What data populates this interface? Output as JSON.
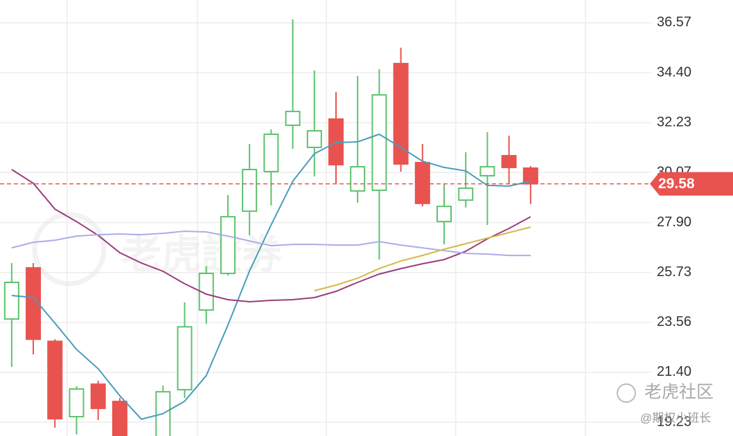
{
  "chart_data": {
    "type": "candlestick",
    "x": [
      0,
      1,
      2,
      3,
      4,
      5,
      6,
      7,
      8,
      9,
      10,
      11,
      12,
      13,
      14,
      15,
      16,
      17,
      18,
      19,
      20,
      21,
      22,
      23,
      24
    ],
    "xlim": [
      -0.54,
      29.58
    ],
    "xticks": [
      2.56,
      8.59,
      14.55,
      20.54,
      26.54
    ],
    "ylim": [
      18.63,
      37.56
    ],
    "yticks": [
      36.57,
      {
        "value": 34.4,
        "label": "34.40"
      },
      32.23,
      30.07,
      {
        "value": 27.9,
        "label": "27.90"
      },
      25.73,
      23.56,
      {
        "value": 21.4,
        "label": "21.40"
      },
      19.23
    ],
    "grid": true,
    "up_color": "#5cc26e",
    "down_color": "#e9534f",
    "open": [
      23.71,
      25.93,
      22.74,
      19.47,
      20.88,
      20.13,
      null,
      18.5,
      20.64,
      24.1,
      25.69,
      28.39,
      30.11,
      32.12,
      31.16,
      32.39,
      29.27,
      29.3,
      34.8,
      30.5,
      27.94,
      28.87,
      29.93,
      30.8,
      30.26
    ],
    "high": [
      26.14,
      26.14,
      22.83,
      20.79,
      21.03,
      20.28,
      null,
      20.82,
      24.43,
      26.0,
      29.09,
      31.31,
      31.94,
      36.72,
      34.5,
      33.56,
      34.26,
      34.56,
      35.49,
      31.31,
      29.6,
      30.95,
      31.82,
      31.67,
      30.35
    ],
    "low": [
      21.63,
      22.17,
      18.99,
      18.7,
      19.32,
      18.4,
      null,
      18.3,
      20.28,
      23.5,
      25.6,
      27.34,
      28.64,
      31.1,
      29.9,
      29.6,
      28.76,
      26.29,
      30.11,
      28.6,
      26.95,
      28.55,
      27.79,
      29.6,
      28.7
    ],
    "close": [
      25.3,
      22.83,
      19.38,
      20.67,
      19.83,
      18.6,
      null,
      20.55,
      23.37,
      25.69,
      28.15,
      30.2,
      31.73,
      32.72,
      31.88,
      30.41,
      30.32,
      33.44,
      30.44,
      28.73,
      28.6,
      29.39,
      30.32,
      30.29,
      29.58
    ],
    "series": [
      {
        "color": "#4a9db8",
        "values": [
          24.73,
          24.64,
          23.53,
          22.39,
          21.55,
          20.38,
          19.36,
          19.6,
          20.14,
          21.25,
          23.44,
          25.79,
          27.8,
          29.69,
          30.89,
          31.37,
          31.4,
          31.73,
          31.16,
          30.56,
          30.29,
          30.14,
          29.51,
          29.48,
          29.69
        ]
      },
      {
        "color": "#9b3d7a",
        "values": [
          30.2,
          29.6,
          28.48,
          27.94,
          27.34,
          26.59,
          26.14,
          25.78,
          25.24,
          24.79,
          24.55,
          24.46,
          24.52,
          24.55,
          24.64,
          24.91,
          25.3,
          25.66,
          25.9,
          26.11,
          26.29,
          26.65,
          27.19,
          27.64,
          28.15
        ]
      },
      {
        "color": "#a9aee6",
        "values": [
          26.8,
          27.04,
          27.13,
          27.31,
          27.37,
          27.4,
          27.37,
          27.43,
          27.52,
          27.49,
          27.31,
          27.1,
          26.89,
          26.95,
          26.95,
          26.92,
          26.92,
          27.07,
          26.92,
          26.8,
          26.68,
          26.56,
          26.53,
          26.47,
          26.47
        ]
      },
      {
        "color": "#d4b84a",
        "values": [
          null,
          null,
          null,
          null,
          null,
          null,
          null,
          null,
          null,
          null,
          null,
          null,
          null,
          null,
          24.94,
          25.18,
          25.48,
          25.9,
          26.23,
          26.47,
          26.74,
          26.98,
          27.22,
          27.46,
          27.7
        ]
      }
    ],
    "last_price": 29.58,
    "last_price_color": "#e9534f",
    "watermark": "老虎證券",
    "community_mark": "老虎社区",
    "author": "@期权小班长"
  }
}
